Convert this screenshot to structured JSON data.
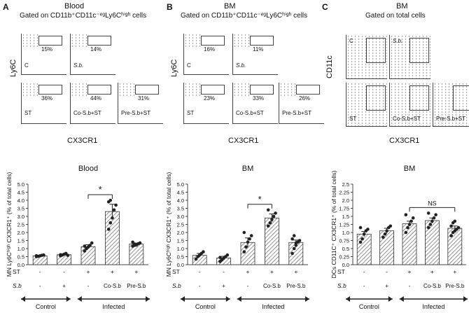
{
  "panels": [
    {
      "letter": "A",
      "tissue": "Blood",
      "gate": "Gated on CD11b⁺CD11c⁻ᵉᵍLy6Cʰⁱᵍʰ cells",
      "y_axis": "Ly6C",
      "x_axis": "CX3CR1",
      "facs": [
        {
          "label": "C",
          "pct": "15%"
        },
        {
          "label": "S.b.",
          "pct": "14%"
        },
        {
          "label": "ST",
          "pct": "36%"
        },
        {
          "label": "Co-S.b+ST",
          "pct": "44%"
        },
        {
          "label": "Pre-S.b+ST",
          "pct": "31%"
        }
      ]
    },
    {
      "letter": "B",
      "tissue": "BM",
      "gate": "Gated on CD11b⁺CD11c⁻ᵉᵍLy6Cʰⁱᵍʰ cells",
      "y_axis": "Ly6C",
      "x_axis": "CX3CR1",
      "facs": [
        {
          "label": "C",
          "pct": "16%"
        },
        {
          "label": "S.b.",
          "pct": "11%"
        },
        {
          "label": "ST",
          "pct": "23%"
        },
        {
          "label": "Co-S.b+ST",
          "pct": "33%"
        },
        {
          "label": "Pre-S.b+ST",
          "pct": "26%"
        }
      ]
    },
    {
      "letter": "C",
      "tissue": "BM",
      "gate": "Gated on total cells",
      "y_axis": "CD11c",
      "x_axis": "CX3CR1",
      "facs": [
        {
          "label": "C",
          "pct": ""
        },
        {
          "label": "S.b.",
          "pct": ""
        },
        {
          "label": "ST",
          "pct": ""
        },
        {
          "label": "Co-S.b+ST",
          "pct": ""
        },
        {
          "label": "Pre-S.b+ST",
          "pct": ""
        }
      ]
    }
  ],
  "row_labels": {
    "st": "ST",
    "sb": "S.b"
  },
  "groups": {
    "control": "Control",
    "infected": "Infected"
  },
  "chart_data": [
    {
      "type": "bar",
      "title": "Blood",
      "ylabel": "MN Ly6Cʰⁱᵍʰ CX3CR1⁺ (% of total  cells)",
      "ylim": [
        0,
        5
      ],
      "yticks": [
        0,
        0.5,
        1,
        1.5,
        2,
        2.5,
        3,
        3.5,
        4,
        4.5,
        5
      ],
      "st_row": [
        "-",
        "-",
        "+",
        "+",
        "+"
      ],
      "sb_row": [
        "-",
        "+",
        "-",
        "Co-S.b",
        "Pre-S.b"
      ],
      "values": [
        0.55,
        0.62,
        1.12,
        3.3,
        1.28
      ],
      "errors": [
        0.03,
        0.05,
        0.12,
        0.45,
        0.06
      ],
      "points": [
        [
          0.5,
          0.52,
          0.55,
          0.58,
          0.6,
          0.56
        ],
        [
          0.55,
          0.6,
          0.65,
          0.7,
          0.58,
          0.62
        ],
        [
          0.85,
          1.0,
          1.1,
          1.2,
          1.35,
          1.15
        ],
        [
          2.2,
          2.6,
          2.9,
          3.4,
          3.7,
          3.9,
          4.0
        ],
        [
          1.15,
          1.2,
          1.25,
          1.3,
          1.35,
          1.4,
          1.28,
          1.22
        ]
      ],
      "annotation": "*",
      "annotation_between": [
        2,
        3
      ]
    },
    {
      "type": "bar",
      "title": "BM",
      "ylabel": "MN Ly6Cʰⁱᵍʰ CX3CR1⁺ (% of total  cells)",
      "ylim": [
        0,
        5
      ],
      "yticks": [
        0,
        0.5,
        1,
        1.5,
        2,
        2.5,
        3,
        3.5,
        4,
        4.5,
        5
      ],
      "st_row": [
        "-",
        "-",
        "+",
        "+",
        "+"
      ],
      "sb_row": [
        "-",
        "+",
        "-",
        "Co-S.b",
        "Pre-S.b"
      ],
      "values": [
        0.58,
        0.42,
        1.38,
        2.9,
        1.38
      ],
      "errors": [
        0.12,
        0.1,
        0.28,
        0.25,
        0.15
      ],
      "points": [
        [
          0.35,
          0.5,
          0.6,
          0.7,
          0.8
        ],
        [
          0.2,
          0.3,
          0.4,
          0.5,
          0.6,
          0.45
        ],
        [
          0.8,
          1.1,
          1.4,
          1.6,
          1.8,
          2.0
        ],
        [
          2.4,
          2.6,
          2.8,
          3.0,
          3.2,
          3.4
        ],
        [
          0.7,
          1.0,
          1.2,
          1.4,
          1.5,
          1.6,
          1.8,
          1.35
        ]
      ],
      "annotation": "*",
      "annotation_between": [
        2,
        3
      ]
    },
    {
      "type": "bar",
      "title": "BM",
      "ylabel": "DCs CD11C⁺ CX3CR1⁺ (% of total cells)",
      "ylim": [
        0,
        2.5
      ],
      "yticks": [
        0,
        0.25,
        0.5,
        0.75,
        1,
        1.25,
        1.5,
        1.75,
        2,
        2.25,
        2.5
      ],
      "st_row": [
        "-",
        "-",
        "+",
        "+",
        "+"
      ],
      "sb_row": [
        "-",
        "+",
        "-",
        "Co-S.b",
        "Pre-S.b"
      ],
      "values": [
        0.95,
        1.05,
        1.27,
        1.37,
        1.13
      ],
      "errors": [
        0.08,
        0.08,
        0.08,
        0.08,
        0.07
      ],
      "points": [
        [
          0.7,
          0.8,
          0.95,
          1.05,
          1.1,
          1.15
        ],
        [
          0.85,
          0.95,
          1.05,
          1.15,
          1.2
        ],
        [
          1.0,
          1.15,
          1.25,
          1.35,
          1.45,
          1.55
        ],
        [
          1.15,
          1.25,
          1.35,
          1.45,
          1.55,
          1.6
        ],
        [
          0.9,
          1.0,
          1.05,
          1.1,
          1.15,
          1.2,
          1.3,
          1.35
        ]
      ],
      "annotation": "NS",
      "annotation_between": [
        2,
        4
      ]
    }
  ]
}
